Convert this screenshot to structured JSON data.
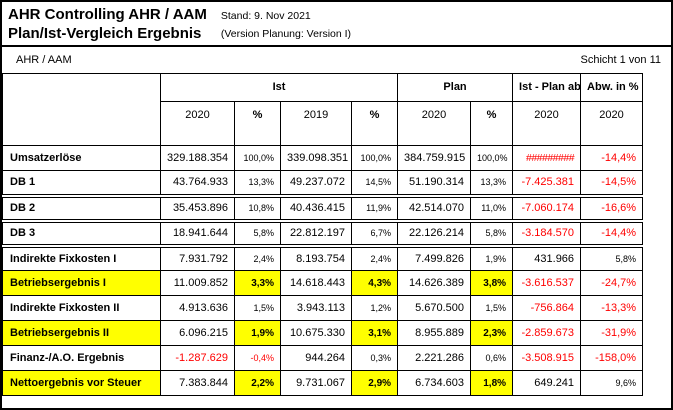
{
  "header": {
    "title_line1": "AHR Controlling AHR / AAM",
    "title_line2": "Plan/Ist-Vergleich Ergebnis",
    "stand": "Stand: 9. Nov 2021",
    "version": "(Version Planung: Version I)"
  },
  "meta": {
    "scope": "AHR / AAM",
    "page_indicator": "Schicht 1 von 11"
  },
  "colors": {
    "highlight_yellow": "#ffff00",
    "negative_red": "#ff0000",
    "ist_header_gray": "#c0c0c0"
  },
  "table": {
    "groups": [
      {
        "label": "Ist"
      },
      {
        "label": "Plan"
      },
      {
        "label": "Ist - Plan absolut"
      },
      {
        "label": "Abw. in %"
      }
    ],
    "subheaders": [
      "2020",
      "%",
      "2019",
      "%",
      "2020",
      "%",
      "2020",
      "2020"
    ],
    "rows": [
      {
        "label": "Umsatzerlöse",
        "highlight": false,
        "gap_above": false,
        "cells": [
          {
            "v": "329.188.354"
          },
          {
            "v": "100,0%",
            "pct": true
          },
          {
            "v": "339.098.351"
          },
          {
            "v": "100,0%",
            "pct": true
          },
          {
            "v": "384.759.915"
          },
          {
            "v": "100,0%",
            "pct": true
          },
          {
            "v": "#########",
            "red": true,
            "overflow": true
          },
          {
            "v": "-14,4%",
            "red": true
          }
        ]
      },
      {
        "label": "DB 1",
        "highlight": false,
        "gap_above": false,
        "cells": [
          {
            "v": "43.764.933"
          },
          {
            "v": "13,3%",
            "pct": true
          },
          {
            "v": "49.237.072"
          },
          {
            "v": "14,5%",
            "pct": true
          },
          {
            "v": "51.190.314"
          },
          {
            "v": "13,3%",
            "pct": true
          },
          {
            "v": "-7.425.381",
            "red": true
          },
          {
            "v": "-14,5%",
            "red": true
          }
        ]
      },
      {
        "label": "DB 2",
        "highlight": false,
        "gap_above": true,
        "cells": [
          {
            "v": "35.453.896"
          },
          {
            "v": "10,8%",
            "pct": true
          },
          {
            "v": "40.436.415"
          },
          {
            "v": "11,9%",
            "pct": true
          },
          {
            "v": "42.514.070"
          },
          {
            "v": "11,0%",
            "pct": true
          },
          {
            "v": "-7.060.174",
            "red": true
          },
          {
            "v": "-16,6%",
            "red": true
          }
        ]
      },
      {
        "label": "DB 3",
        "highlight": false,
        "gap_above": true,
        "cells": [
          {
            "v": "18.941.644"
          },
          {
            "v": "5,8%",
            "pct": true
          },
          {
            "v": "22.812.197"
          },
          {
            "v": "6,7%",
            "pct": true
          },
          {
            "v": "22.126.214"
          },
          {
            "v": "5,8%",
            "pct": true
          },
          {
            "v": "-3.184.570",
            "red": true
          },
          {
            "v": "-14,4%",
            "red": true
          }
        ]
      },
      {
        "label": "Indirekte Fixkosten I",
        "highlight": false,
        "gap_above": true,
        "cells": [
          {
            "v": "7.931.792"
          },
          {
            "v": "2,4%",
            "pct": true
          },
          {
            "v": "8.193.754"
          },
          {
            "v": "2,4%",
            "pct": true
          },
          {
            "v": "7.499.826"
          },
          {
            "v": "1,9%",
            "pct": true
          },
          {
            "v": "431.966"
          },
          {
            "v": "5,8%",
            "small": true
          }
        ]
      },
      {
        "label": "Betriebsergebnis I",
        "highlight": true,
        "gap_above": false,
        "cells": [
          {
            "v": "11.009.852"
          },
          {
            "v": "3,3%",
            "pct": true
          },
          {
            "v": "14.618.443"
          },
          {
            "v": "4,3%",
            "pct": true
          },
          {
            "v": "14.626.389"
          },
          {
            "v": "3,8%",
            "pct": true
          },
          {
            "v": "-3.616.537",
            "red": true
          },
          {
            "v": "-24,7%",
            "red": true
          }
        ]
      },
      {
        "label": "Indirekte Fixkosten II",
        "highlight": false,
        "gap_above": false,
        "cells": [
          {
            "v": "4.913.636"
          },
          {
            "v": "1,5%",
            "pct": true
          },
          {
            "v": "3.943.113"
          },
          {
            "v": "1,2%",
            "pct": true
          },
          {
            "v": "5.670.500"
          },
          {
            "v": "1,5%",
            "pct": true
          },
          {
            "v": "-756.864",
            "red": true
          },
          {
            "v": "-13,3%",
            "red": true
          }
        ]
      },
      {
        "label": "Betriebsergebnis II",
        "highlight": true,
        "gap_above": false,
        "cells": [
          {
            "v": "6.096.215"
          },
          {
            "v": "1,9%",
            "pct": true
          },
          {
            "v": "10.675.330"
          },
          {
            "v": "3,1%",
            "pct": true
          },
          {
            "v": "8.955.889"
          },
          {
            "v": "2,3%",
            "pct": true
          },
          {
            "v": "-2.859.673",
            "red": true
          },
          {
            "v": "-31,9%",
            "red": true
          }
        ]
      },
      {
        "label": "Finanz-/A.O. Ergebnis",
        "highlight": false,
        "gap_above": false,
        "cells": [
          {
            "v": "-1.287.629",
            "red": true
          },
          {
            "v": "-0,4%",
            "pct": true,
            "red": true
          },
          {
            "v": "944.264"
          },
          {
            "v": "0,3%",
            "pct": true
          },
          {
            "v": "2.221.286"
          },
          {
            "v": "0,6%",
            "pct": true
          },
          {
            "v": "-3.508.915",
            "red": true
          },
          {
            "v": "-158,0%",
            "red": true
          }
        ]
      },
      {
        "label": "Nettoergebnis vor Steuer",
        "highlight": true,
        "gap_above": false,
        "cells": [
          {
            "v": "7.383.844"
          },
          {
            "v": "2,2%",
            "pct": true
          },
          {
            "v": "9.731.067"
          },
          {
            "v": "2,9%",
            "pct": true
          },
          {
            "v": "6.734.603"
          },
          {
            "v": "1,8%",
            "pct": true
          },
          {
            "v": "649.241"
          },
          {
            "v": "9,6%",
            "small": true
          }
        ]
      }
    ]
  }
}
